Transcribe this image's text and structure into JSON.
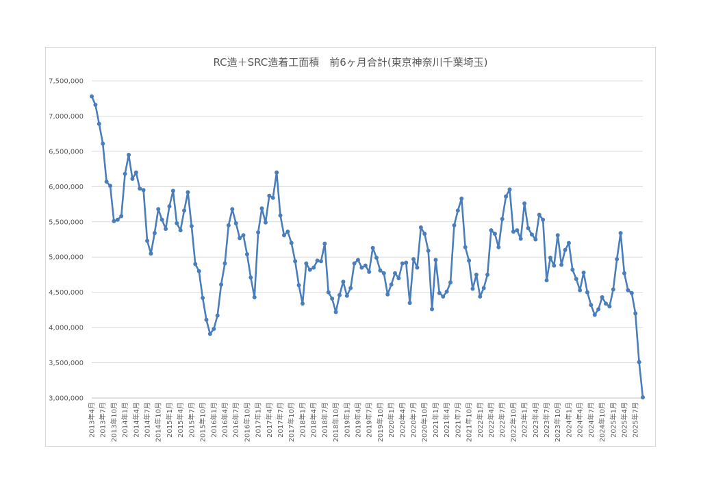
{
  "chart_data": {
    "type": "line",
    "title": "RC造＋SRC造着工面積　前6ヶ月合計(東京神奈川千葉埼玉)",
    "ylim": [
      3000000,
      7500000
    ],
    "yticks": [
      "3,000,000",
      "3,500,000",
      "4,000,000",
      "4,500,000",
      "5,000,000",
      "5,500,000",
      "6,000,000",
      "6,500,000",
      "7,000,000",
      "7,500,000"
    ],
    "ytick_values": [
      3000000,
      3500000,
      4000000,
      4500000,
      5000000,
      5500000,
      6000000,
      6500000,
      7000000,
      7500000
    ],
    "grid": true,
    "legend": "none",
    "color": "#4a7ebb",
    "x_start": "2013-04",
    "x_tick_labels": [
      "2013年4月",
      "2013年7月",
      "2013年10月",
      "2014年1月",
      "2014年4月",
      "2014年7月",
      "2014年10月",
      "2015年1月",
      "2015年4月",
      "2015年7月",
      "2015年10月",
      "2016年1月",
      "2016年4月",
      "2016年7月",
      "2016年10月",
      "2017年1月",
      "2017年4月",
      "2017年7月",
      "2017年10月",
      "2018年1月",
      "2018年4月",
      "2018年7月",
      "2018年10月",
      "2019年1月",
      "2019年4月",
      "2019年7月",
      "2019年10月",
      "2020年1月",
      "2020年4月",
      "2020年7月",
      "2020年10月",
      "2021年1月",
      "2021年4月",
      "2021年7月",
      "2021年10月",
      "2022年1月",
      "2022年4月",
      "2022年7月",
      "2022年10月",
      "2023年1月",
      "2023年4月",
      "2023年7月",
      "2023年10月",
      "2024年1月",
      "2024年4月",
      "2024年7月",
      "2024年10月",
      "2025年1月",
      "2025年4月",
      "2025年7月"
    ],
    "values": [
      7280000,
      7160000,
      6890000,
      6610000,
      6070000,
      6010000,
      5510000,
      5530000,
      5580000,
      6180000,
      6450000,
      6110000,
      6200000,
      5970000,
      5950000,
      5230000,
      5050000,
      5340000,
      5680000,
      5530000,
      5400000,
      5720000,
      5940000,
      5480000,
      5380000,
      5660000,
      5920000,
      5440000,
      4900000,
      4800000,
      4420000,
      4110000,
      3910000,
      3980000,
      4170000,
      4610000,
      4910000,
      5450000,
      5680000,
      5480000,
      5270000,
      5310000,
      5040000,
      4710000,
      4430000,
      5350000,
      5690000,
      5490000,
      5870000,
      5840000,
      6200000,
      5590000,
      5310000,
      5360000,
      5200000,
      4940000,
      4600000,
      4340000,
      4910000,
      4820000,
      4850000,
      4950000,
      4940000,
      5190000,
      4500000,
      4410000,
      4220000,
      4460000,
      4650000,
      4450000,
      4560000,
      4910000,
      4960000,
      4850000,
      4880000,
      4790000,
      5130000,
      4990000,
      4810000,
      4770000,
      4470000,
      4610000,
      4770000,
      4700000,
      4910000,
      4920000,
      4350000,
      4970000,
      4850000,
      5420000,
      5330000,
      5090000,
      4260000,
      4960000,
      4490000,
      4440000,
      4510000,
      4640000,
      5450000,
      5660000,
      5830000,
      5140000,
      4950000,
      4550000,
      4750000,
      4440000,
      4560000,
      4750000,
      5380000,
      5330000,
      5140000,
      5540000,
      5860000,
      5960000,
      5360000,
      5380000,
      5260000,
      5760000,
      5410000,
      5320000,
      5250000,
      5600000,
      5530000,
      4670000,
      4990000,
      4880000,
      5310000,
      4890000,
      5100000,
      5200000,
      4820000,
      4690000,
      4530000,
      4780000,
      4500000,
      4320000,
      4180000,
      4260000,
      4430000,
      4340000,
      4300000,
      4540000,
      4970000,
      5340000,
      4770000,
      4530000,
      4490000,
      4200000,
      3510000,
      3010000
    ]
  }
}
